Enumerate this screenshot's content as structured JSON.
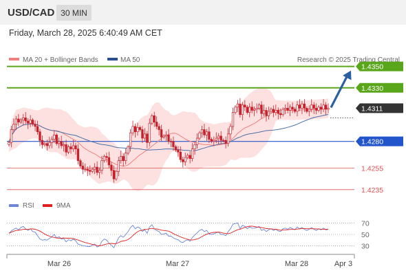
{
  "header": {
    "symbol": "USD/CAD",
    "timeframe": "30 MIN"
  },
  "datetime": "Friday, March 28, 2025 6:40:49 AM CET",
  "legend": {
    "ma20": "MA 20 + Bollinger Bands",
    "ma50": "MA 50",
    "source": "Research © 2025 Trading Central"
  },
  "rsi_legend": {
    "rsi": "RSI",
    "ma9": "9MA"
  },
  "colors": {
    "resistance": "#5aa61a",
    "support": "#2255cc",
    "support_minor": "#e05050",
    "current": "#333333",
    "arrow": "#2b5fa0",
    "ma20": "#f08080",
    "ma50": "#4a6fa5",
    "band": "#fde0e0",
    "candle": "#c8202a",
    "rsi": "#6b86d6",
    "rsi_ma": "#e02020"
  },
  "chart_data": [
    {
      "type": "candlestick",
      "title": "USD/CAD 30 MIN",
      "x_labels": [
        "Mar 26",
        "Mar 27",
        "Mar 28",
        "Apr 3"
      ],
      "ylim": [
        1.4225,
        1.436
      ],
      "levels": [
        {
          "label": "1.4350",
          "value": 1.435,
          "kind": "resistance"
        },
        {
          "label": "1.4330",
          "value": 1.433,
          "kind": "resistance"
        },
        {
          "label": "1.4311",
          "value": 1.4311,
          "kind": "current"
        },
        {
          "label": "1.4280",
          "value": 1.428,
          "kind": "support"
        },
        {
          "label": "1.4255",
          "value": 1.4255,
          "kind": "support_minor"
        },
        {
          "label": "1.4235",
          "value": 1.4235,
          "kind": "support_minor"
        }
      ],
      "forecast_target": 1.435,
      "close": [
        1.4279,
        1.4291,
        1.4296,
        1.4301,
        1.4298,
        1.43,
        1.4302,
        1.4299,
        1.4297,
        1.43,
        1.4296,
        1.4294,
        1.4289,
        1.4281,
        1.4277,
        1.4278,
        1.4276,
        1.4279,
        1.4282,
        1.4286,
        1.4278,
        1.428,
        1.4276,
        1.4277,
        1.427,
        1.4275,
        1.4273,
        1.4276,
        1.4273,
        1.4262,
        1.4257,
        1.4254,
        1.4254,
        1.4253,
        1.4252,
        1.4254,
        1.4256,
        1.4251,
        1.4253,
        1.4262,
        1.4266,
        1.4265,
        1.4258,
        1.4253,
        1.4245,
        1.4252,
        1.4262,
        1.4266,
        1.4262,
        1.4269,
        1.4275,
        1.4288,
        1.4294,
        1.4289,
        1.4293,
        1.4291,
        1.4283,
        1.4287,
        1.4279,
        1.4297,
        1.4304,
        1.4298,
        1.4294,
        1.4291,
        1.4284,
        1.4285,
        1.4286,
        1.428,
        1.428,
        1.4275,
        1.4272,
        1.427,
        1.4263,
        1.4261,
        1.4265,
        1.4267,
        1.4264,
        1.4273,
        1.4277,
        1.4283,
        1.4288,
        1.4291,
        1.4286,
        1.4289,
        1.4282,
        1.428,
        1.4281,
        1.4283,
        1.4285,
        1.4281,
        1.4281,
        1.4278,
        1.4287,
        1.4294,
        1.4307,
        1.4312,
        1.4315,
        1.4305,
        1.4314,
        1.4312,
        1.4307,
        1.4312,
        1.4309,
        1.431,
        1.4311,
        1.4314,
        1.4306,
        1.4309,
        1.4304,
        1.4308,
        1.431,
        1.4307,
        1.4309,
        1.4306,
        1.4305,
        1.431,
        1.4311,
        1.4309,
        1.4312,
        1.431,
        1.4308,
        1.4314,
        1.4311,
        1.4315,
        1.4311,
        1.4308,
        1.431,
        1.4314,
        1.4311,
        1.4309,
        1.4312,
        1.431,
        1.4314,
        1.431,
        1.4311
      ]
    },
    {
      "type": "line",
      "title": "RSI",
      "y_ticks": [
        70,
        50,
        30
      ],
      "ylim": [
        20,
        80
      ],
      "series": [
        {
          "name": "RSI",
          "values": [
            52,
            56,
            59,
            61,
            58,
            62,
            64,
            60,
            57,
            60,
            55,
            54,
            48,
            42,
            40,
            41,
            40,
            43,
            46,
            50,
            44,
            46,
            42,
            43,
            37,
            41,
            39,
            42,
            39,
            33,
            32,
            30,
            30,
            29,
            29,
            31,
            33,
            28,
            30,
            38,
            42,
            40,
            35,
            31,
            27,
            35,
            44,
            48,
            45,
            50,
            55,
            62,
            66,
            60,
            63,
            61,
            55,
            58,
            52,
            63,
            67,
            60,
            57,
            55,
            50,
            51,
            52,
            47,
            47,
            44,
            42,
            41,
            37,
            36,
            39,
            41,
            38,
            45,
            49,
            53,
            57,
            59,
            55,
            57,
            51,
            50,
            51,
            53,
            54,
            50,
            50,
            48,
            55,
            60,
            68,
            69,
            70,
            60,
            66,
            64,
            60,
            63,
            61,
            61,
            62,
            64,
            57,
            59,
            55,
            58,
            60,
            57,
            59,
            56,
            55,
            60,
            61,
            59,
            62,
            60,
            58,
            63,
            60,
            62,
            59,
            57,
            59,
            62,
            59,
            57,
            60,
            58,
            61,
            58,
            59
          ]
        },
        {
          "name": "9MA"
        }
      ]
    }
  ]
}
